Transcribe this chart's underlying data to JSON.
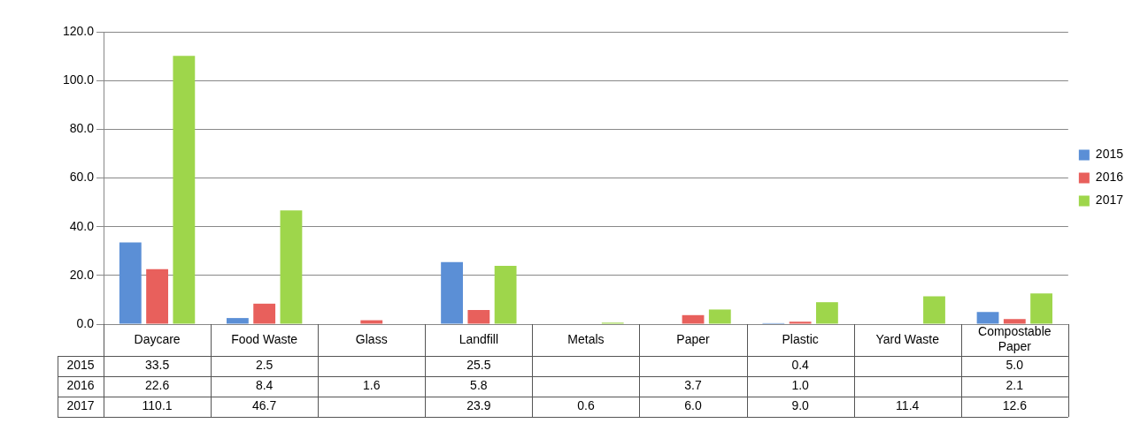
{
  "chart_data": {
    "type": "bar",
    "categories": [
      "Daycare",
      "Food Waste",
      "Glass",
      "Landfill",
      "Metals",
      "Paper",
      "Plastic",
      "Yard Waste",
      "Compostable Paper"
    ],
    "series": [
      {
        "name": "2015",
        "color": "#5b8fd6",
        "values": [
          33.5,
          2.5,
          null,
          25.5,
          null,
          null,
          0.4,
          null,
          5.0
        ],
        "value_labels": [
          "33.5",
          "2.5",
          null,
          "25.5",
          null,
          null,
          "0.4",
          null,
          "5.0"
        ]
      },
      {
        "name": "2016",
        "color": "#e8605c",
        "values": [
          22.6,
          8.4,
          1.6,
          5.8,
          null,
          3.7,
          1.0,
          null,
          2.1
        ],
        "value_labels": [
          "22.6",
          "8.4",
          "1.6",
          "5.8",
          null,
          "3.7",
          "1.0",
          null,
          "2.1"
        ]
      },
      {
        "name": "2017",
        "color": "#9ed64b",
        "values": [
          110.1,
          46.7,
          null,
          23.9,
          0.6,
          6.0,
          9.0,
          11.4,
          12.6
        ],
        "value_labels": [
          "110.1",
          "46.7",
          null,
          "23.9",
          "0.6",
          "6.0",
          "9.0",
          "11.4",
          "12.6"
        ]
      }
    ],
    "ylim": [
      0,
      120
    ],
    "yticks": [
      {
        "value": 0,
        "label": "0.0"
      },
      {
        "value": 20,
        "label": "20.0"
      },
      {
        "value": 40,
        "label": "40.0"
      },
      {
        "value": 60,
        "label": "60.0"
      },
      {
        "value": 80,
        "label": "80.0"
      },
      {
        "value": 100,
        "label": "100.0"
      },
      {
        "value": 120,
        "label": "120.0"
      }
    ],
    "grid": "y",
    "legend": "right"
  }
}
